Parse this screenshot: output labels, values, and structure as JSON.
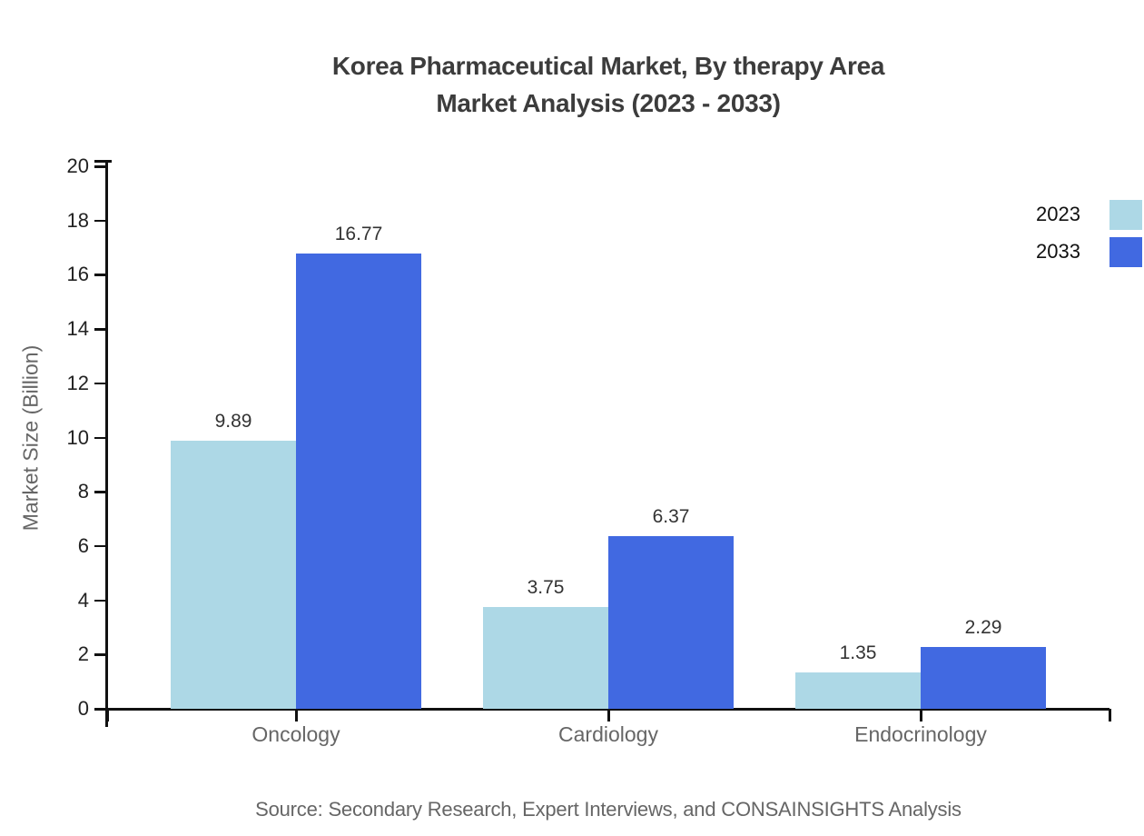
{
  "title": {
    "line1": "Korea Pharmaceutical Market, By therapy Area",
    "line2": "Market Analysis (2023 - 2033)"
  },
  "source": "Source: Secondary Research, Expert Interviews, and CONSAINSIGHTS Analysis",
  "chart_data": {
    "type": "bar",
    "title": "Korea Pharmaceutical Market, By therapy Area Market Analysis (2023 - 2033)",
    "categories": [
      "Oncology",
      "Cardiology",
      "Endocrinology"
    ],
    "series": [
      {
        "name": "2023",
        "color": "#ADD8E6",
        "values": [
          9.89,
          3.75,
          1.35
        ]
      },
      {
        "name": "2033",
        "color": "#4169E1",
        "values": [
          16.77,
          6.37,
          2.29
        ]
      }
    ],
    "xlabel": "",
    "ylabel": "Market Size (Billion)",
    "ylim": [
      0,
      20
    ],
    "ytick_step": 2,
    "grid": false,
    "legend_position": "top-right",
    "value_labels": true,
    "value_label_decimals": 2
  },
  "colors": {
    "axis": "#111111",
    "title_text": "#3C3C3C",
    "category_text": "#666666",
    "tick_text": "#222222",
    "value_text": "#333333",
    "background": "#FFFFFF"
  }
}
